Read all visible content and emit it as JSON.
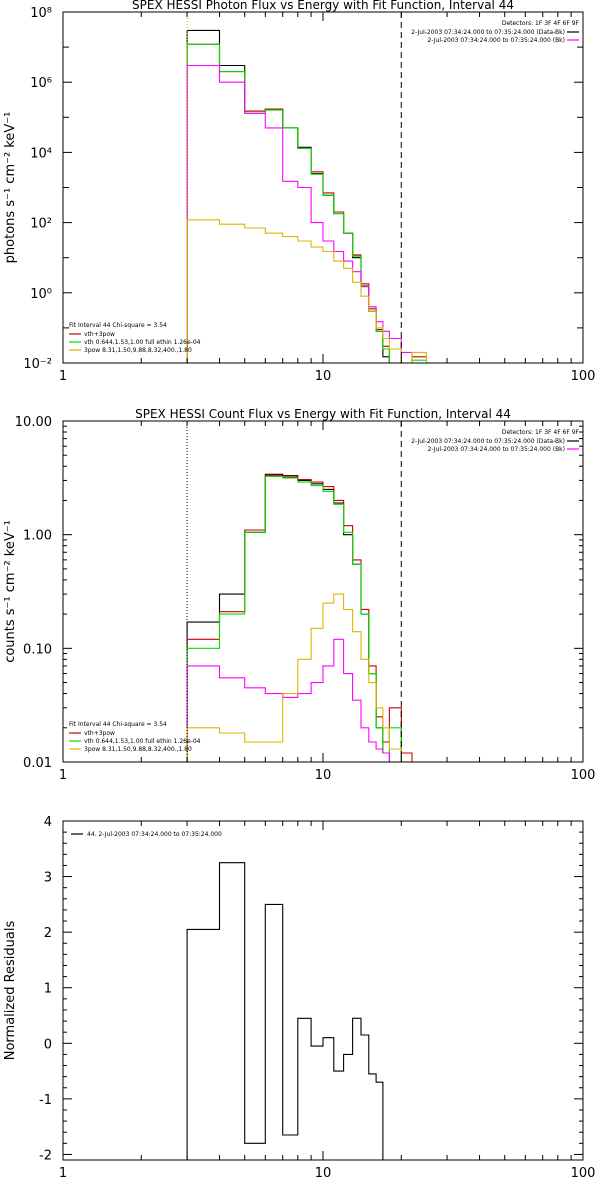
{
  "chart_data": [
    {
      "type": "line",
      "title": "SPEX HESSI Photon Flux vs Energy with Fit Function, Interval 44",
      "ylabel": "photons s⁻¹ cm⁻² keV⁻¹",
      "xlabel": "",
      "xscale": "log",
      "yscale": "log",
      "xlim": [
        1,
        100
      ],
      "ylim": [
        0.01,
        100000000
      ],
      "x_ticks": [
        "1",
        "10",
        "100"
      ],
      "y_ticks": [
        "10⁻²",
        "10⁰",
        "10²",
        "10⁴",
        "10⁶",
        "10⁸"
      ],
      "vlines": [
        {
          "x": 3,
          "style": "dotted",
          "color": "#e0a000"
        },
        {
          "x": 20,
          "style": "dashed",
          "color": "#000000"
        }
      ],
      "legend_topright": {
        "header": "Detectors: 1F 3F 4F 6F 9F",
        "items": [
          {
            "text": "2-Jul-2003 07:34:24.000 to 07:35:24.000 (Data-Bk)",
            "color": "#000000"
          },
          {
            "text": "2-Jul-2003 07:34:24.000 to 07:35:24.000 (Bk)",
            "color": "#ff00ff"
          }
        ]
      },
      "legend_bottomleft": {
        "header": "Fit Interval 44    Chi-square = 3.54",
        "items": [
          {
            "text": "vth+3pow",
            "color": "#cc0000"
          },
          {
            "text": "vth 0.644,1.53,1.00   full ethin 1.26e-04",
            "color": "#00dd00"
          },
          {
            "text": "3pow 8.31,1.50,9.88,8.32,400.,1.80",
            "color": "#e0b400"
          }
        ]
      },
      "edges": [
        3,
        4,
        5,
        6,
        7,
        8,
        9,
        10,
        11,
        12,
        13,
        14,
        15,
        16,
        17,
        18,
        20,
        22,
        25,
        28
      ],
      "series": [
        {
          "color": "#000000",
          "values": [
            30000000.0,
            3000000.0,
            150000.0,
            170000.0,
            50000.0,
            14000.0,
            2500,
            600,
            180,
            50,
            10,
            1.5,
            0.3,
            0.08,
            0.015,
            0.003,
            null,
            null,
            null
          ]
        },
        {
          "color": "#cc0000",
          "values": [
            12000000.0,
            2000000.0,
            150000.0,
            170000.0,
            50000.0,
            13000.0,
            2800,
            700,
            200,
            50,
            12,
            1.8,
            0.35,
            0.09,
            0.03,
            0.008,
            0.003,
            0.015,
            0.004
          ]
        },
        {
          "color": "#00dd00",
          "values": [
            12000000.0,
            2000000.0,
            130000.0,
            160000.0,
            50000.0,
            13000.0,
            2400,
            600,
            180,
            50,
            11,
            1.6,
            0.3,
            0.08,
            0.025,
            0.007,
            0.002,
            0.012,
            0.004
          ]
        },
        {
          "color": "#ff00ff",
          "values": [
            3000000.0,
            1000000.0,
            130000.0,
            50000.0,
            1500,
            1000,
            100,
            30,
            15,
            8,
            4,
            1.5,
            0.4,
            0.15,
            0.08,
            0.05,
            0.02,
            null,
            null
          ]
        },
        {
          "color": "#e0b400",
          "values": [
            120,
            90,
            70,
            50,
            40,
            30,
            20,
            15,
            8,
            5,
            2,
            0.8,
            0.3,
            0.1,
            0.05,
            0.025,
            0.008,
            0.02,
            0.01
          ]
        }
      ]
    },
    {
      "type": "line",
      "title": "SPEX HESSI Count Flux vs Energy with Fit Function, Interval 44",
      "ylabel": "counts s⁻¹ cm⁻² keV⁻¹",
      "xlabel": "",
      "xscale": "log",
      "yscale": "log",
      "xlim": [
        1,
        100
      ],
      "ylim": [
        0.01,
        10
      ],
      "x_ticks": [
        "1",
        "10",
        "100"
      ],
      "y_ticks": [
        "0.01",
        "0.10",
        "1.00",
        "10.00"
      ],
      "vlines": [
        {
          "x": 3,
          "style": "dotted",
          "color": "#000000"
        },
        {
          "x": 20,
          "style": "dashed",
          "color": "#000000"
        }
      ],
      "legend_topright": {
        "header": "Detectors: 1F 3F 4F 6F 9F",
        "items": [
          {
            "text": "2-Jul-2003 07:34:24.000 to 07:35:24.000 (Data-Bk)",
            "color": "#000000"
          },
          {
            "text": "2-Jul-2003 07:34:24.000 to 07:35:24.000 (Bk)",
            "color": "#ff00ff"
          }
        ]
      },
      "legend_bottomleft": {
        "header": "Fit Interval 44    Chi-square = 3.54",
        "items": [
          {
            "text": "vth+3pow",
            "color": "#cc0000"
          },
          {
            "text": "vth 0.644,1.53,1.00   full ethin 1.26e-04",
            "color": "#00dd00"
          },
          {
            "text": "3pow 8.31,1.50,9.88,8.32,400.,1.80",
            "color": "#e0b400"
          }
        ]
      },
      "edges": [
        3,
        4,
        5,
        6,
        7,
        8,
        9,
        10,
        11,
        12,
        13,
        14,
        15,
        16,
        17,
        18,
        20,
        22
      ],
      "series": [
        {
          "color": "#000000",
          "values": [
            0.17,
            0.3,
            1.05,
            3.4,
            3.3,
            3.0,
            2.8,
            2.5,
            1.9,
            1.0,
            0.55,
            0.2,
            0.06,
            0.02,
            0.012,
            0.009,
            null
          ]
        },
        {
          "color": "#cc0000",
          "values": [
            0.12,
            0.21,
            1.1,
            3.3,
            3.2,
            3.05,
            2.9,
            2.65,
            2.0,
            1.2,
            0.6,
            0.22,
            0.07,
            0.025,
            0.015,
            0.03,
            0.012
          ]
        },
        {
          "color": "#00dd00",
          "values": [
            0.1,
            0.2,
            1.05,
            3.25,
            3.15,
            2.9,
            2.7,
            2.4,
            1.85,
            1.05,
            0.55,
            0.2,
            0.06,
            0.02,
            0.012,
            0.02,
            null
          ]
        },
        {
          "color": "#ff00ff",
          "values": [
            0.07,
            0.055,
            0.045,
            0.04,
            0.037,
            0.04,
            0.05,
            0.07,
            0.12,
            0.06,
            0.035,
            0.02,
            0.015,
            0.013,
            0.012,
            0.01,
            null
          ]
        },
        {
          "color": "#e0b400",
          "values": [
            0.02,
            0.018,
            0.015,
            0.015,
            0.04,
            0.08,
            0.15,
            0.25,
            0.3,
            0.22,
            0.14,
            0.08,
            0.05,
            0.03,
            0.02,
            0.013,
            null
          ]
        }
      ]
    },
    {
      "type": "line",
      "title": "",
      "ylabel": "Normalized Residuals",
      "xlabel": "",
      "xscale": "log",
      "yscale": "linear",
      "xlim": [
        1,
        100
      ],
      "ylim": [
        -2.1,
        4
      ],
      "x_ticks": [
        "1",
        "10",
        "100"
      ],
      "y_ticks": [
        "-2",
        "-1",
        "0",
        "1",
        "2",
        "3",
        "4"
      ],
      "legend_topleft": {
        "items": [
          {
            "text": "44.  2-Jul-2003 07:34:24.000 to 07:35:24.000",
            "color": "#000000"
          }
        ]
      },
      "edges": [
        3,
        4,
        5,
        6,
        7,
        8,
        9,
        10,
        11,
        12,
        13,
        14,
        15,
        16,
        17,
        18,
        20
      ],
      "series": [
        {
          "color": "#000000",
          "values": [
            2.05,
            3.25,
            -1.8,
            2.5,
            -1.65,
            0.45,
            -0.05,
            0.1,
            -0.5,
            -0.2,
            0.45,
            0.15,
            -0.55,
            -0.7,
            -2.1,
            -2.1
          ]
        }
      ]
    }
  ]
}
